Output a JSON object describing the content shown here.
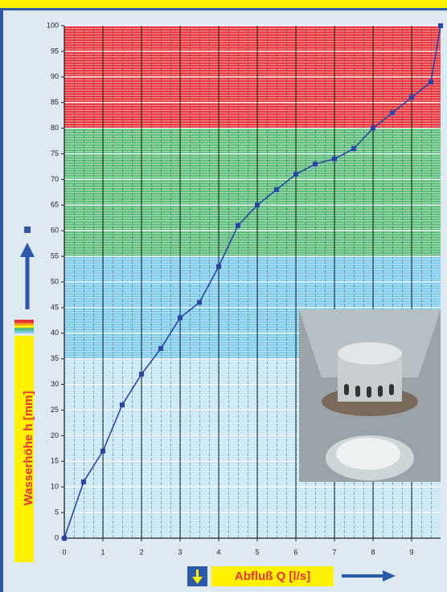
{
  "chart_data": {
    "type": "line",
    "x_label": "Abfluß Q [l/s]",
    "y_label": "Wasserhöhe h [mm]",
    "x": [
      0,
      0.5,
      1,
      1.5,
      2,
      2.5,
      3,
      3.5,
      4,
      4.5,
      5,
      5.5,
      6,
      6.5,
      7,
      7.5,
      8,
      8.5,
      9,
      9.5,
      9.75
    ],
    "series": [
      {
        "color": "#2a43a8",
        "values": [
          0,
          11,
          17,
          26,
          32,
          37,
          43,
          46,
          53,
          61,
          65,
          68,
          71,
          73,
          74,
          76,
          80,
          83,
          86,
          89,
          100
        ]
      }
    ],
    "xlim": [
      0,
      9.75
    ],
    "ylim": [
      0,
      100
    ],
    "xticks": [
      0,
      1,
      2,
      3,
      4,
      5,
      6,
      7,
      8,
      9
    ],
    "yticks": [
      0,
      5,
      10,
      15,
      20,
      25,
      30,
      35,
      40,
      45,
      50,
      55,
      60,
      65,
      70,
      75,
      80,
      85,
      90,
      95,
      100
    ],
    "bands": [
      {
        "from": 0,
        "to": 35,
        "color": "#c4e6f6"
      },
      {
        "from": 35,
        "to": 55,
        "color": "#7ccbec"
      },
      {
        "from": 55,
        "to": 80,
        "color": "#5bbd7a"
      },
      {
        "from": 80,
        "to": 100,
        "color": "#e8333a"
      }
    ],
    "grid": true
  }
}
